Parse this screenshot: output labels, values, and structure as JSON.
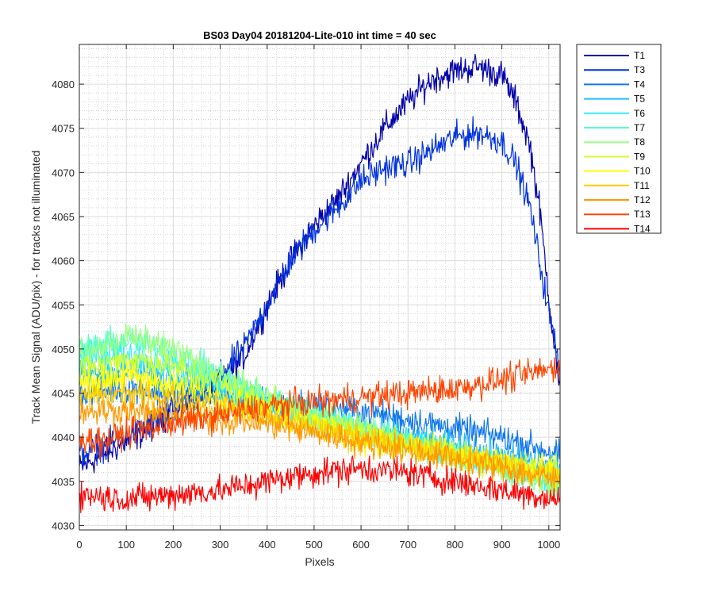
{
  "chart_data": {
    "type": "line",
    "title": "BS03 Day04 20181204-Lite-010 int time = 40 sec",
    "xlabel": "Pixels",
    "ylabel": "Track Mean Signal (ADU/pix) - for tracks not illuminated",
    "xlim": [
      0,
      1024
    ],
    "ylim": [
      4029.5,
      4084.5
    ],
    "xticks": [
      0,
      100,
      200,
      300,
      400,
      500,
      600,
      700,
      800,
      900,
      1000
    ],
    "yticks": [
      4030,
      4035,
      4040,
      4045,
      4050,
      4055,
      4060,
      4065,
      4070,
      4075,
      4080
    ],
    "grid": true,
    "minor_grid": true,
    "legend_position": "outside-right",
    "series": [
      {
        "name": "T1",
        "color": "#0000aa",
        "x": [
          0,
          50,
          100,
          150,
          200,
          250,
          300,
          350,
          400,
          450,
          500,
          550,
          600,
          650,
          700,
          750,
          800,
          850,
          900,
          930,
          960,
          980,
          1000,
          1024
        ],
        "y": [
          4036.5,
          4038,
          4039.5,
          4041,
          4043,
          4044.5,
          4046,
          4049,
          4055,
          4060,
          4064,
          4067,
          4071,
          4075,
          4078,
          4080.5,
          4081.5,
          4082,
          4081,
          4078,
          4073,
          4066,
          4056,
          4045
        ]
      },
      {
        "name": "T3",
        "color": "#0033dd",
        "x": [
          0,
          50,
          100,
          150,
          200,
          250,
          300,
          350,
          400,
          450,
          500,
          550,
          600,
          650,
          700,
          750,
          800,
          850,
          900,
          930,
          960,
          980,
          1000,
          1024
        ],
        "y": [
          4038,
          4039,
          4040,
          4041.5,
          4043,
          4045,
          4047,
          4050,
          4055,
          4060,
          4063.5,
          4066,
          4069,
          4070.5,
          4071,
          4072.5,
          4074,
          4074.5,
          4073.5,
          4071,
          4066,
          4060,
          4054,
          4048
        ]
      },
      {
        "name": "T4",
        "color": "#1177ee",
        "x": [
          0,
          100,
          200,
          300,
          400,
          500,
          600,
          700,
          800,
          900,
          1024
        ],
        "y": [
          4045,
          4045.5,
          4045,
          4044.5,
          4044,
          4043.5,
          4043,
          4042,
          4041,
          4040,
          4038
        ]
      },
      {
        "name": "T5",
        "color": "#22bbff",
        "x": [
          0,
          100,
          200,
          300,
          400,
          500,
          600,
          700,
          800,
          900,
          1024
        ],
        "y": [
          4047,
          4047.5,
          4047,
          4045.5,
          4043.5,
          4042,
          4041,
          4040,
          4039,
          4038,
          4036.5
        ]
      },
      {
        "name": "T6",
        "color": "#33eeff",
        "x": [
          0,
          100,
          200,
          300,
          400,
          500,
          600,
          700,
          800,
          900,
          1024
        ],
        "y": [
          4049,
          4049.5,
          4048,
          4046,
          4044,
          4042.5,
          4041,
          4039.5,
          4038.5,
          4037,
          4035
        ]
      },
      {
        "name": "T7",
        "color": "#55ffcc",
        "x": [
          0,
          100,
          200,
          300,
          400,
          500,
          600,
          700,
          800,
          900,
          1024
        ],
        "y": [
          4050,
          4051,
          4049.5,
          4047,
          4044.5,
          4042.5,
          4041,
          4039.5,
          4038,
          4036.5,
          4034.5
        ]
      },
      {
        "name": "T8",
        "color": "#99ff88",
        "x": [
          0,
          100,
          200,
          300,
          400,
          500,
          600,
          700,
          800,
          900,
          1024
        ],
        "y": [
          4049,
          4051.5,
          4050,
          4047,
          4044.5,
          4042.5,
          4041,
          4039.5,
          4038,
          4036.5,
          4034.5
        ]
      },
      {
        "name": "T9",
        "color": "#ccff33",
        "x": [
          0,
          100,
          200,
          300,
          400,
          500,
          600,
          700,
          800,
          900,
          1024
        ],
        "y": [
          4047.5,
          4049,
          4048,
          4046,
          4044,
          4042,
          4040.5,
          4039,
          4038,
          4037,
          4036.5
        ]
      },
      {
        "name": "T10",
        "color": "#ffff00",
        "x": [
          0,
          100,
          200,
          300,
          400,
          500,
          600,
          700,
          800,
          900,
          1024
        ],
        "y": [
          4046,
          4047,
          4046,
          4044.5,
          4043,
          4041.5,
          4040,
          4039,
          4038,
          4037,
          4036
        ]
      },
      {
        "name": "T11",
        "color": "#ffcc00",
        "x": [
          0,
          100,
          200,
          300,
          400,
          500,
          600,
          700,
          800,
          900,
          1024
        ],
        "y": [
          4044.5,
          4045,
          4044.5,
          4043.5,
          4042.5,
          4041,
          4040,
          4039,
          4038,
          4037,
          4035.5
        ]
      },
      {
        "name": "T12",
        "color": "#ff9900",
        "x": [
          0,
          100,
          200,
          300,
          400,
          500,
          600,
          700,
          800,
          900,
          1024
        ],
        "y": [
          4043,
          4043,
          4042.5,
          4042,
          4041.5,
          4040.5,
          4039.5,
          4038.5,
          4037.5,
          4036.5,
          4035
        ]
      },
      {
        "name": "T13",
        "color": "#ff4400",
        "x": [
          0,
          50,
          100,
          200,
          300,
          400,
          500,
          600,
          700,
          800,
          900,
          1024
        ],
        "y": [
          4040,
          4039.5,
          4040.5,
          4041.5,
          4042.5,
          4043.5,
          4044,
          4044.5,
          4045,
          4045.5,
          4046.5,
          4048
        ]
      },
      {
        "name": "T14",
        "color": "#ff0000",
        "x": [
          0,
          100,
          200,
          300,
          400,
          500,
          600,
          700,
          800,
          900,
          1024
        ],
        "y": [
          4033.5,
          4033,
          4033.5,
          4034,
          4035,
          4036,
          4036.5,
          4036,
          4035,
          4034,
          4033
        ]
      }
    ]
  }
}
